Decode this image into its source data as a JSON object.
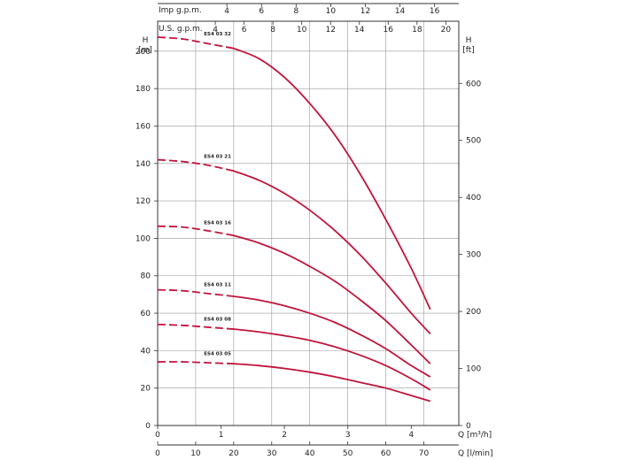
{
  "chart_data": {
    "type": "line",
    "grid": true,
    "axes": {
      "q_m3h": {
        "label": "Q [m³/h]",
        "ticks": [
          "0",
          "1",
          "2",
          "3",
          "4"
        ],
        "range": [
          0,
          4.75
        ]
      },
      "q_lmin": {
        "label": "Q [l/min]",
        "ticks": [
          "0",
          "10",
          "20",
          "30",
          "40",
          "50",
          "60",
          "70"
        ],
        "range": [
          0,
          79.2
        ]
      },
      "us_gpm": {
        "label": "U.S. g.p.m.",
        "ticks": [
          "4",
          "6",
          "8",
          "10",
          "12",
          "14",
          "16",
          "18",
          "20"
        ],
        "range": [
          0,
          20.9
        ]
      },
      "imp_gpm": {
        "label": "Imp g.p.m.",
        "ticks": [
          "4",
          "6",
          "8",
          "10",
          "12",
          "14",
          "16"
        ],
        "range": [
          0,
          17.4
        ]
      },
      "h_m": {
        "label_top": "H",
        "label_bottom": "[m]",
        "ticks": [
          "0",
          "20",
          "40",
          "60",
          "80",
          "100",
          "120",
          "140",
          "160",
          "180",
          "200"
        ],
        "range": [
          0,
          216
        ]
      },
      "h_ft": {
        "label_top": "H",
        "label_bottom": "[ft]",
        "ticks": [
          "0",
          "100",
          "200",
          "300",
          "400",
          "500",
          "600"
        ],
        "range": [
          0,
          709
        ]
      }
    },
    "dash_end_q": 1.2,
    "series": [
      {
        "name": "ES4 03 32",
        "color": "#c0143c",
        "label_at": [
          0.73,
          208.5
        ],
        "points": [
          [
            0,
            207.5
          ],
          [
            0.4,
            206.5
          ],
          [
            0.8,
            204
          ],
          [
            1.2,
            201.5
          ],
          [
            1.6,
            196
          ],
          [
            2.0,
            186
          ],
          [
            2.4,
            172
          ],
          [
            2.8,
            155
          ],
          [
            3.2,
            134
          ],
          [
            3.6,
            110
          ],
          [
            4.0,
            84
          ],
          [
            4.3,
            62
          ]
        ]
      },
      {
        "name": "ES4 03 21",
        "color": "#c0143c",
        "label_at": [
          0.73,
          143
        ],
        "points": [
          [
            0,
            142
          ],
          [
            0.4,
            141
          ],
          [
            0.8,
            139
          ],
          [
            1.2,
            136
          ],
          [
            1.6,
            131
          ],
          [
            2.0,
            124
          ],
          [
            2.4,
            115
          ],
          [
            2.8,
            104
          ],
          [
            3.2,
            91
          ],
          [
            3.6,
            76
          ],
          [
            4.0,
            60
          ],
          [
            4.3,
            49
          ]
        ]
      },
      {
        "name": "ES4 03 16",
        "color": "#c0143c",
        "label_at": [
          0.73,
          107.5
        ],
        "points": [
          [
            0,
            106.5
          ],
          [
            0.4,
            106
          ],
          [
            0.8,
            104
          ],
          [
            1.2,
            101.5
          ],
          [
            1.6,
            97.5
          ],
          [
            2.0,
            92
          ],
          [
            2.4,
            85
          ],
          [
            2.8,
            77
          ],
          [
            3.2,
            67
          ],
          [
            3.6,
            56
          ],
          [
            4.0,
            43
          ],
          [
            4.3,
            33
          ]
        ]
      },
      {
        "name": "ES4 03 11",
        "color": "#c0143c",
        "label_at": [
          0.73,
          74.5
        ],
        "points": [
          [
            0,
            72.5
          ],
          [
            0.4,
            72
          ],
          [
            0.8,
            70.5
          ],
          [
            1.2,
            69
          ],
          [
            1.6,
            67
          ],
          [
            2.0,
            64
          ],
          [
            2.4,
            60
          ],
          [
            2.8,
            55
          ],
          [
            3.2,
            48.5
          ],
          [
            3.6,
            41
          ],
          [
            4.0,
            32
          ],
          [
            4.3,
            26
          ]
        ]
      },
      {
        "name": "ES4 03 08",
        "color": "#c0143c",
        "label_at": [
          0.73,
          56
        ],
        "points": [
          [
            0,
            54
          ],
          [
            0.4,
            53.5
          ],
          [
            0.8,
            52.5
          ],
          [
            1.2,
            51.5
          ],
          [
            1.6,
            50
          ],
          [
            2.0,
            48
          ],
          [
            2.4,
            45.5
          ],
          [
            2.8,
            42
          ],
          [
            3.2,
            37.5
          ],
          [
            3.6,
            32
          ],
          [
            4.0,
            25
          ],
          [
            4.3,
            19
          ]
        ]
      },
      {
        "name": "ES4 03 05",
        "color": "#c0143c",
        "label_at": [
          0.73,
          37.5
        ],
        "points": [
          [
            0,
            34
          ],
          [
            0.4,
            34
          ],
          [
            0.8,
            33.5
          ],
          [
            1.2,
            33
          ],
          [
            1.6,
            32
          ],
          [
            2.0,
            30.5
          ],
          [
            2.4,
            28.5
          ],
          [
            2.8,
            26
          ],
          [
            3.2,
            23
          ],
          [
            3.6,
            20
          ],
          [
            4.0,
            16
          ],
          [
            4.3,
            13
          ]
        ]
      }
    ]
  }
}
